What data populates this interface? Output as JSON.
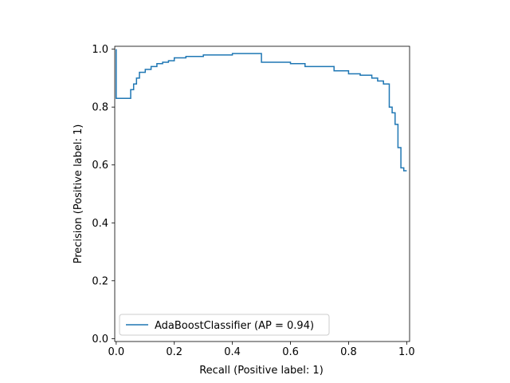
{
  "chart_data": {
    "type": "line",
    "xlabel": "Recall (Positive label: 1)",
    "ylabel": "Precision (Positive label: 1)",
    "xlim": [
      -0.005,
      1.01
    ],
    "ylim": [
      -0.01,
      1.01
    ],
    "x_ticks": [
      0.0,
      0.2,
      0.4,
      0.6,
      0.8,
      1.0
    ],
    "x_tick_labels": [
      "0.0",
      "0.2",
      "0.4",
      "0.6",
      "0.8",
      "1.0"
    ],
    "y_ticks": [
      0.0,
      0.2,
      0.4,
      0.6,
      0.8,
      1.0
    ],
    "y_tick_labels": [
      "0.0",
      "0.2",
      "0.4",
      "0.6",
      "0.8",
      "1.0"
    ],
    "grid": false,
    "legend_position": "lower-left",
    "series": [
      {
        "name": "AdaBoostClassifier (AP = 0.94)",
        "color": "#1f77b4",
        "step": true,
        "x": [
          0.0,
          0.05,
          0.06,
          0.07,
          0.08,
          0.09,
          0.1,
          0.12,
          0.14,
          0.16,
          0.18,
          0.2,
          0.24,
          0.3,
          0.4,
          0.5,
          0.6,
          0.65,
          0.7,
          0.75,
          0.8,
          0.84,
          0.88,
          0.9,
          0.92,
          0.94,
          0.95,
          0.96,
          0.97,
          0.98,
          0.99,
          1.0
        ],
        "y": [
          1.0,
          0.83,
          0.86,
          0.88,
          0.9,
          0.92,
          0.92,
          0.93,
          0.94,
          0.95,
          0.955,
          0.96,
          0.97,
          0.975,
          0.98,
          0.985,
          0.955,
          0.95,
          0.94,
          0.94,
          0.925,
          0.915,
          0.91,
          0.9,
          0.89,
          0.88,
          0.8,
          0.78,
          0.74,
          0.66,
          0.59,
          0.58
        ]
      }
    ]
  }
}
